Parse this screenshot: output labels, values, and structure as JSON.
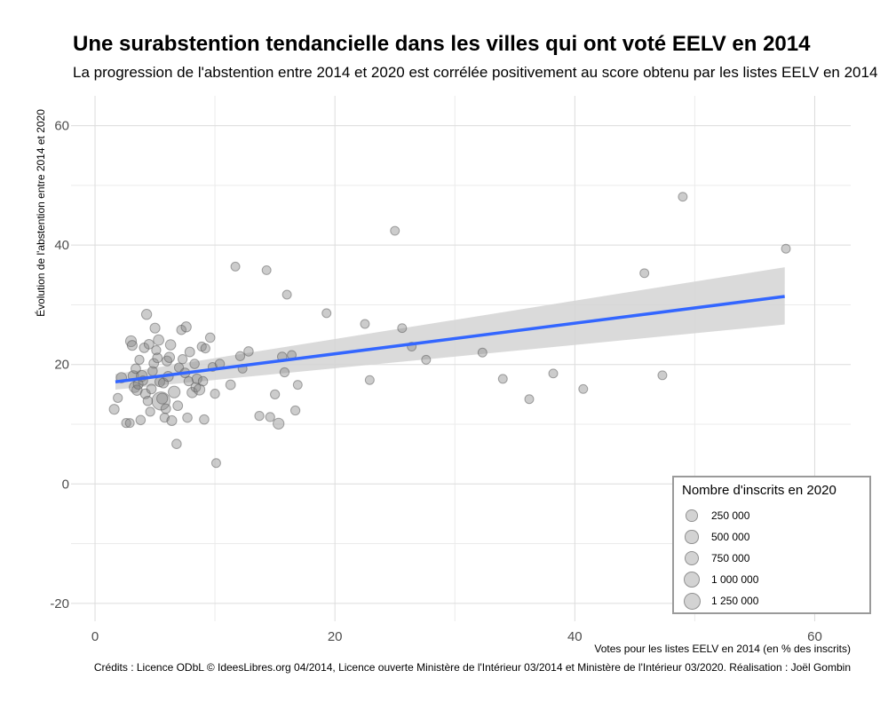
{
  "chart_data": {
    "type": "scatter",
    "title": "Une surabstention tendancielle dans les villes qui ont voté EELV en 2014",
    "subtitle": "La progression de l'abstention entre 2014 et 2020 est corrélée positivement au score obtenu par les listes EELV en 2014",
    "xlabel": "Votes pour les listes EELV en 2014 (en % des inscrits)",
    "ylabel": "Évolution de l'abstention entre 2014 et 2020",
    "caption": "Crédits : Licence ODbL © IdeesLibres.org 04/2014, Licence ouverte Ministère de l'Intérieur 03/2014 et Ministère de l'Intérieur 03/2020. Réalisation : Joël Gombin",
    "xlim": [
      -2,
      63
    ],
    "ylim": [
      -23,
      65
    ],
    "x_ticks": [
      0,
      20,
      40,
      60
    ],
    "x_tick_labels": [
      "0",
      "20",
      "40",
      "60"
    ],
    "y_ticks": [
      -20,
      0,
      20,
      40,
      60
    ],
    "y_tick_labels": [
      "-20",
      "0",
      "20",
      "40",
      "60"
    ],
    "grid": true,
    "point_color": "#808080",
    "legend": {
      "title": "Nombre d'inscrits en 2020",
      "placement": "bottom-right",
      "entries": [
        {
          "label": "250 000",
          "value": 250000
        },
        {
          "label": "500 000",
          "value": 500000
        },
        {
          "label": "750 000",
          "value": 750000
        },
        {
          "label": "1 000 000",
          "value": 1000000
        },
        {
          "label": "1 250 000",
          "value": 1250000
        }
      ]
    },
    "trend": {
      "color": "#3366ff",
      "band_color": "#d3d3d3",
      "x": [
        1.7,
        57.5
      ],
      "y": [
        17.1,
        31.4
      ],
      "band_upper": [
        18.4,
        36.3
      ],
      "band_lower": [
        15.8,
        26.7
      ]
    },
    "points": [
      {
        "x": 1.6,
        "y": 12.5,
        "size": 100000
      },
      {
        "x": 1.9,
        "y": 14.4,
        "size": 70000
      },
      {
        "x": 2.2,
        "y": 17.8,
        "size": 120000
      },
      {
        "x": 2.6,
        "y": 10.2,
        "size": 70000
      },
      {
        "x": 2.9,
        "y": 10.2,
        "size": 60000
      },
      {
        "x": 3.0,
        "y": 23.9,
        "size": 150000
      },
      {
        "x": 3.1,
        "y": 23.2,
        "size": 100000
      },
      {
        "x": 3.2,
        "y": 18.1,
        "size": 130000
      },
      {
        "x": 3.3,
        "y": 16.2,
        "size": 140000
      },
      {
        "x": 3.4,
        "y": 19.3,
        "size": 90000
      },
      {
        "x": 3.5,
        "y": 15.7,
        "size": 120000
      },
      {
        "x": 3.6,
        "y": 16.7,
        "size": 100000
      },
      {
        "x": 3.7,
        "y": 20.8,
        "size": 70000
      },
      {
        "x": 3.8,
        "y": 10.7,
        "size": 80000
      },
      {
        "x": 3.9,
        "y": 18.1,
        "size": 150000
      },
      {
        "x": 4.0,
        "y": 17.3,
        "size": 80000
      },
      {
        "x": 4.1,
        "y": 22.8,
        "size": 90000
      },
      {
        "x": 4.2,
        "y": 15.1,
        "size": 100000
      },
      {
        "x": 4.3,
        "y": 28.4,
        "size": 110000
      },
      {
        "x": 4.4,
        "y": 13.9,
        "size": 80000
      },
      {
        "x": 4.5,
        "y": 23.4,
        "size": 90000
      },
      {
        "x": 4.6,
        "y": 12.1,
        "size": 70000
      },
      {
        "x": 4.7,
        "y": 15.9,
        "size": 90000
      },
      {
        "x": 4.8,
        "y": 18.9,
        "size": 80000
      },
      {
        "x": 4.9,
        "y": 20.2,
        "size": 90000
      },
      {
        "x": 5.0,
        "y": 26.1,
        "size": 100000
      },
      {
        "x": 5.1,
        "y": 22.4,
        "size": 70000
      },
      {
        "x": 5.2,
        "y": 21.1,
        "size": 90000
      },
      {
        "x": 5.3,
        "y": 24.1,
        "size": 130000
      },
      {
        "x": 5.4,
        "y": 17.1,
        "size": 100000
      },
      {
        "x": 5.5,
        "y": 13.9,
        "size": 800000
      },
      {
        "x": 5.6,
        "y": 14.3,
        "size": 150000
      },
      {
        "x": 5.7,
        "y": 16.9,
        "size": 100000
      },
      {
        "x": 5.8,
        "y": 11.1,
        "size": 70000
      },
      {
        "x": 5.9,
        "y": 12.6,
        "size": 90000
      },
      {
        "x": 6.0,
        "y": 20.6,
        "size": 100000
      },
      {
        "x": 6.1,
        "y": 18.0,
        "size": 110000
      },
      {
        "x": 6.2,
        "y": 21.2,
        "size": 120000
      },
      {
        "x": 6.3,
        "y": 23.3,
        "size": 120000
      },
      {
        "x": 6.4,
        "y": 10.6,
        "size": 100000
      },
      {
        "x": 6.6,
        "y": 15.4,
        "size": 200000
      },
      {
        "x": 6.8,
        "y": 6.7,
        "size": 80000
      },
      {
        "x": 6.9,
        "y": 13.1,
        "size": 90000
      },
      {
        "x": 7.0,
        "y": 19.5,
        "size": 70000
      },
      {
        "x": 7.2,
        "y": 25.8,
        "size": 80000
      },
      {
        "x": 7.3,
        "y": 20.9,
        "size": 70000
      },
      {
        "x": 7.5,
        "y": 18.6,
        "size": 90000
      },
      {
        "x": 7.6,
        "y": 26.3,
        "size": 110000
      },
      {
        "x": 7.7,
        "y": 11.1,
        "size": 80000
      },
      {
        "x": 7.8,
        "y": 17.2,
        "size": 70000
      },
      {
        "x": 7.9,
        "y": 22.1,
        "size": 90000
      },
      {
        "x": 8.1,
        "y": 15.3,
        "size": 120000
      },
      {
        "x": 8.3,
        "y": 20.1,
        "size": 80000
      },
      {
        "x": 8.4,
        "y": 16.2,
        "size": 90000
      },
      {
        "x": 8.5,
        "y": 17.6,
        "size": 100000
      },
      {
        "x": 8.7,
        "y": 15.8,
        "size": 150000
      },
      {
        "x": 8.9,
        "y": 23.0,
        "size": 70000
      },
      {
        "x": 9.0,
        "y": 17.2,
        "size": 80000
      },
      {
        "x": 9.1,
        "y": 10.8,
        "size": 80000
      },
      {
        "x": 9.2,
        "y": 22.7,
        "size": 70000
      },
      {
        "x": 9.6,
        "y": 24.5,
        "size": 80000
      },
      {
        "x": 9.8,
        "y": 19.6,
        "size": 60000
      },
      {
        "x": 10.0,
        "y": 15.1,
        "size": 70000
      },
      {
        "x": 10.1,
        "y": 3.5,
        "size": 60000
      },
      {
        "x": 10.4,
        "y": 20.1,
        "size": 80000
      },
      {
        "x": 11.3,
        "y": 16.6,
        "size": 90000
      },
      {
        "x": 11.7,
        "y": 36.4,
        "size": 60000
      },
      {
        "x": 12.1,
        "y": 21.4,
        "size": 70000
      },
      {
        "x": 12.3,
        "y": 19.3,
        "size": 60000
      },
      {
        "x": 12.8,
        "y": 22.2,
        "size": 80000
      },
      {
        "x": 13.7,
        "y": 11.4,
        "size": 70000
      },
      {
        "x": 14.3,
        "y": 35.8,
        "size": 60000
      },
      {
        "x": 14.6,
        "y": 11.2,
        "size": 70000
      },
      {
        "x": 15.0,
        "y": 15.0,
        "size": 70000
      },
      {
        "x": 15.3,
        "y": 10.1,
        "size": 150000
      },
      {
        "x": 15.6,
        "y": 21.3,
        "size": 80000
      },
      {
        "x": 15.8,
        "y": 18.7,
        "size": 70000
      },
      {
        "x": 16.0,
        "y": 31.7,
        "size": 60000
      },
      {
        "x": 16.4,
        "y": 21.6,
        "size": 60000
      },
      {
        "x": 16.7,
        "y": 12.3,
        "size": 70000
      },
      {
        "x": 16.9,
        "y": 16.6,
        "size": 60000
      },
      {
        "x": 19.3,
        "y": 28.6,
        "size": 60000
      },
      {
        "x": 22.5,
        "y": 26.8,
        "size": 60000
      },
      {
        "x": 22.9,
        "y": 17.4,
        "size": 60000
      },
      {
        "x": 25.0,
        "y": 42.4,
        "size": 60000
      },
      {
        "x": 25.6,
        "y": 26.1,
        "size": 60000
      },
      {
        "x": 26.4,
        "y": 23.0,
        "size": 60000
      },
      {
        "x": 27.6,
        "y": 20.8,
        "size": 60000
      },
      {
        "x": 32.3,
        "y": 22.0,
        "size": 60000
      },
      {
        "x": 34.0,
        "y": 17.6,
        "size": 60000
      },
      {
        "x": 36.2,
        "y": 14.2,
        "size": 60000
      },
      {
        "x": 38.2,
        "y": 18.5,
        "size": 60000
      },
      {
        "x": 40.7,
        "y": 15.9,
        "size": 60000
      },
      {
        "x": 45.8,
        "y": 35.3,
        "size": 60000
      },
      {
        "x": 47.3,
        "y": 18.2,
        "size": 60000
      },
      {
        "x": 49.0,
        "y": 48.1,
        "size": 60000
      },
      {
        "x": 57.6,
        "y": 39.4,
        "size": 60000
      }
    ]
  }
}
